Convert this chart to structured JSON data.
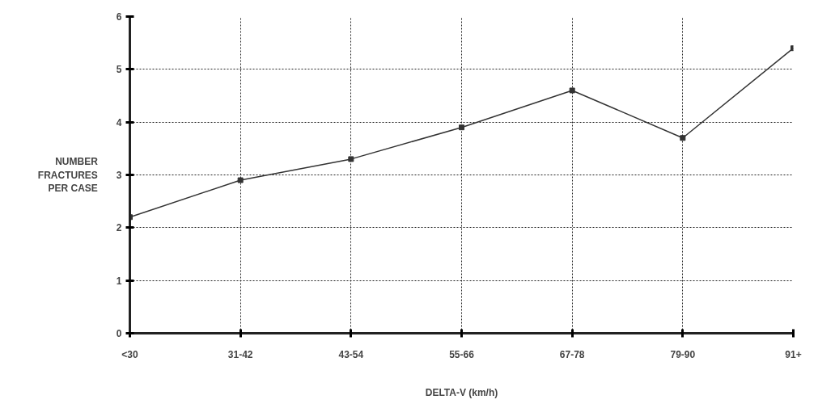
{
  "chart_data": {
    "type": "line",
    "xlabel": "DELTA-V (km/h)",
    "ylabel": "NUMBER FRACTURES PER CASE",
    "categories": [
      "<30",
      "31-42",
      "43-54",
      "55-66",
      "67-78",
      "79-90",
      "91+"
    ],
    "series": [
      {
        "color": "#333333",
        "values": [
          2.2,
          2.9,
          3.3,
          3.9,
          4.6,
          3.7,
          5.4
        ]
      }
    ],
    "ylim": [
      0,
      6
    ],
    "yticks": [
      0,
      1,
      2,
      3,
      4,
      5,
      6
    ],
    "grid": true,
    "marker": "square",
    "line_style": "solid"
  }
}
